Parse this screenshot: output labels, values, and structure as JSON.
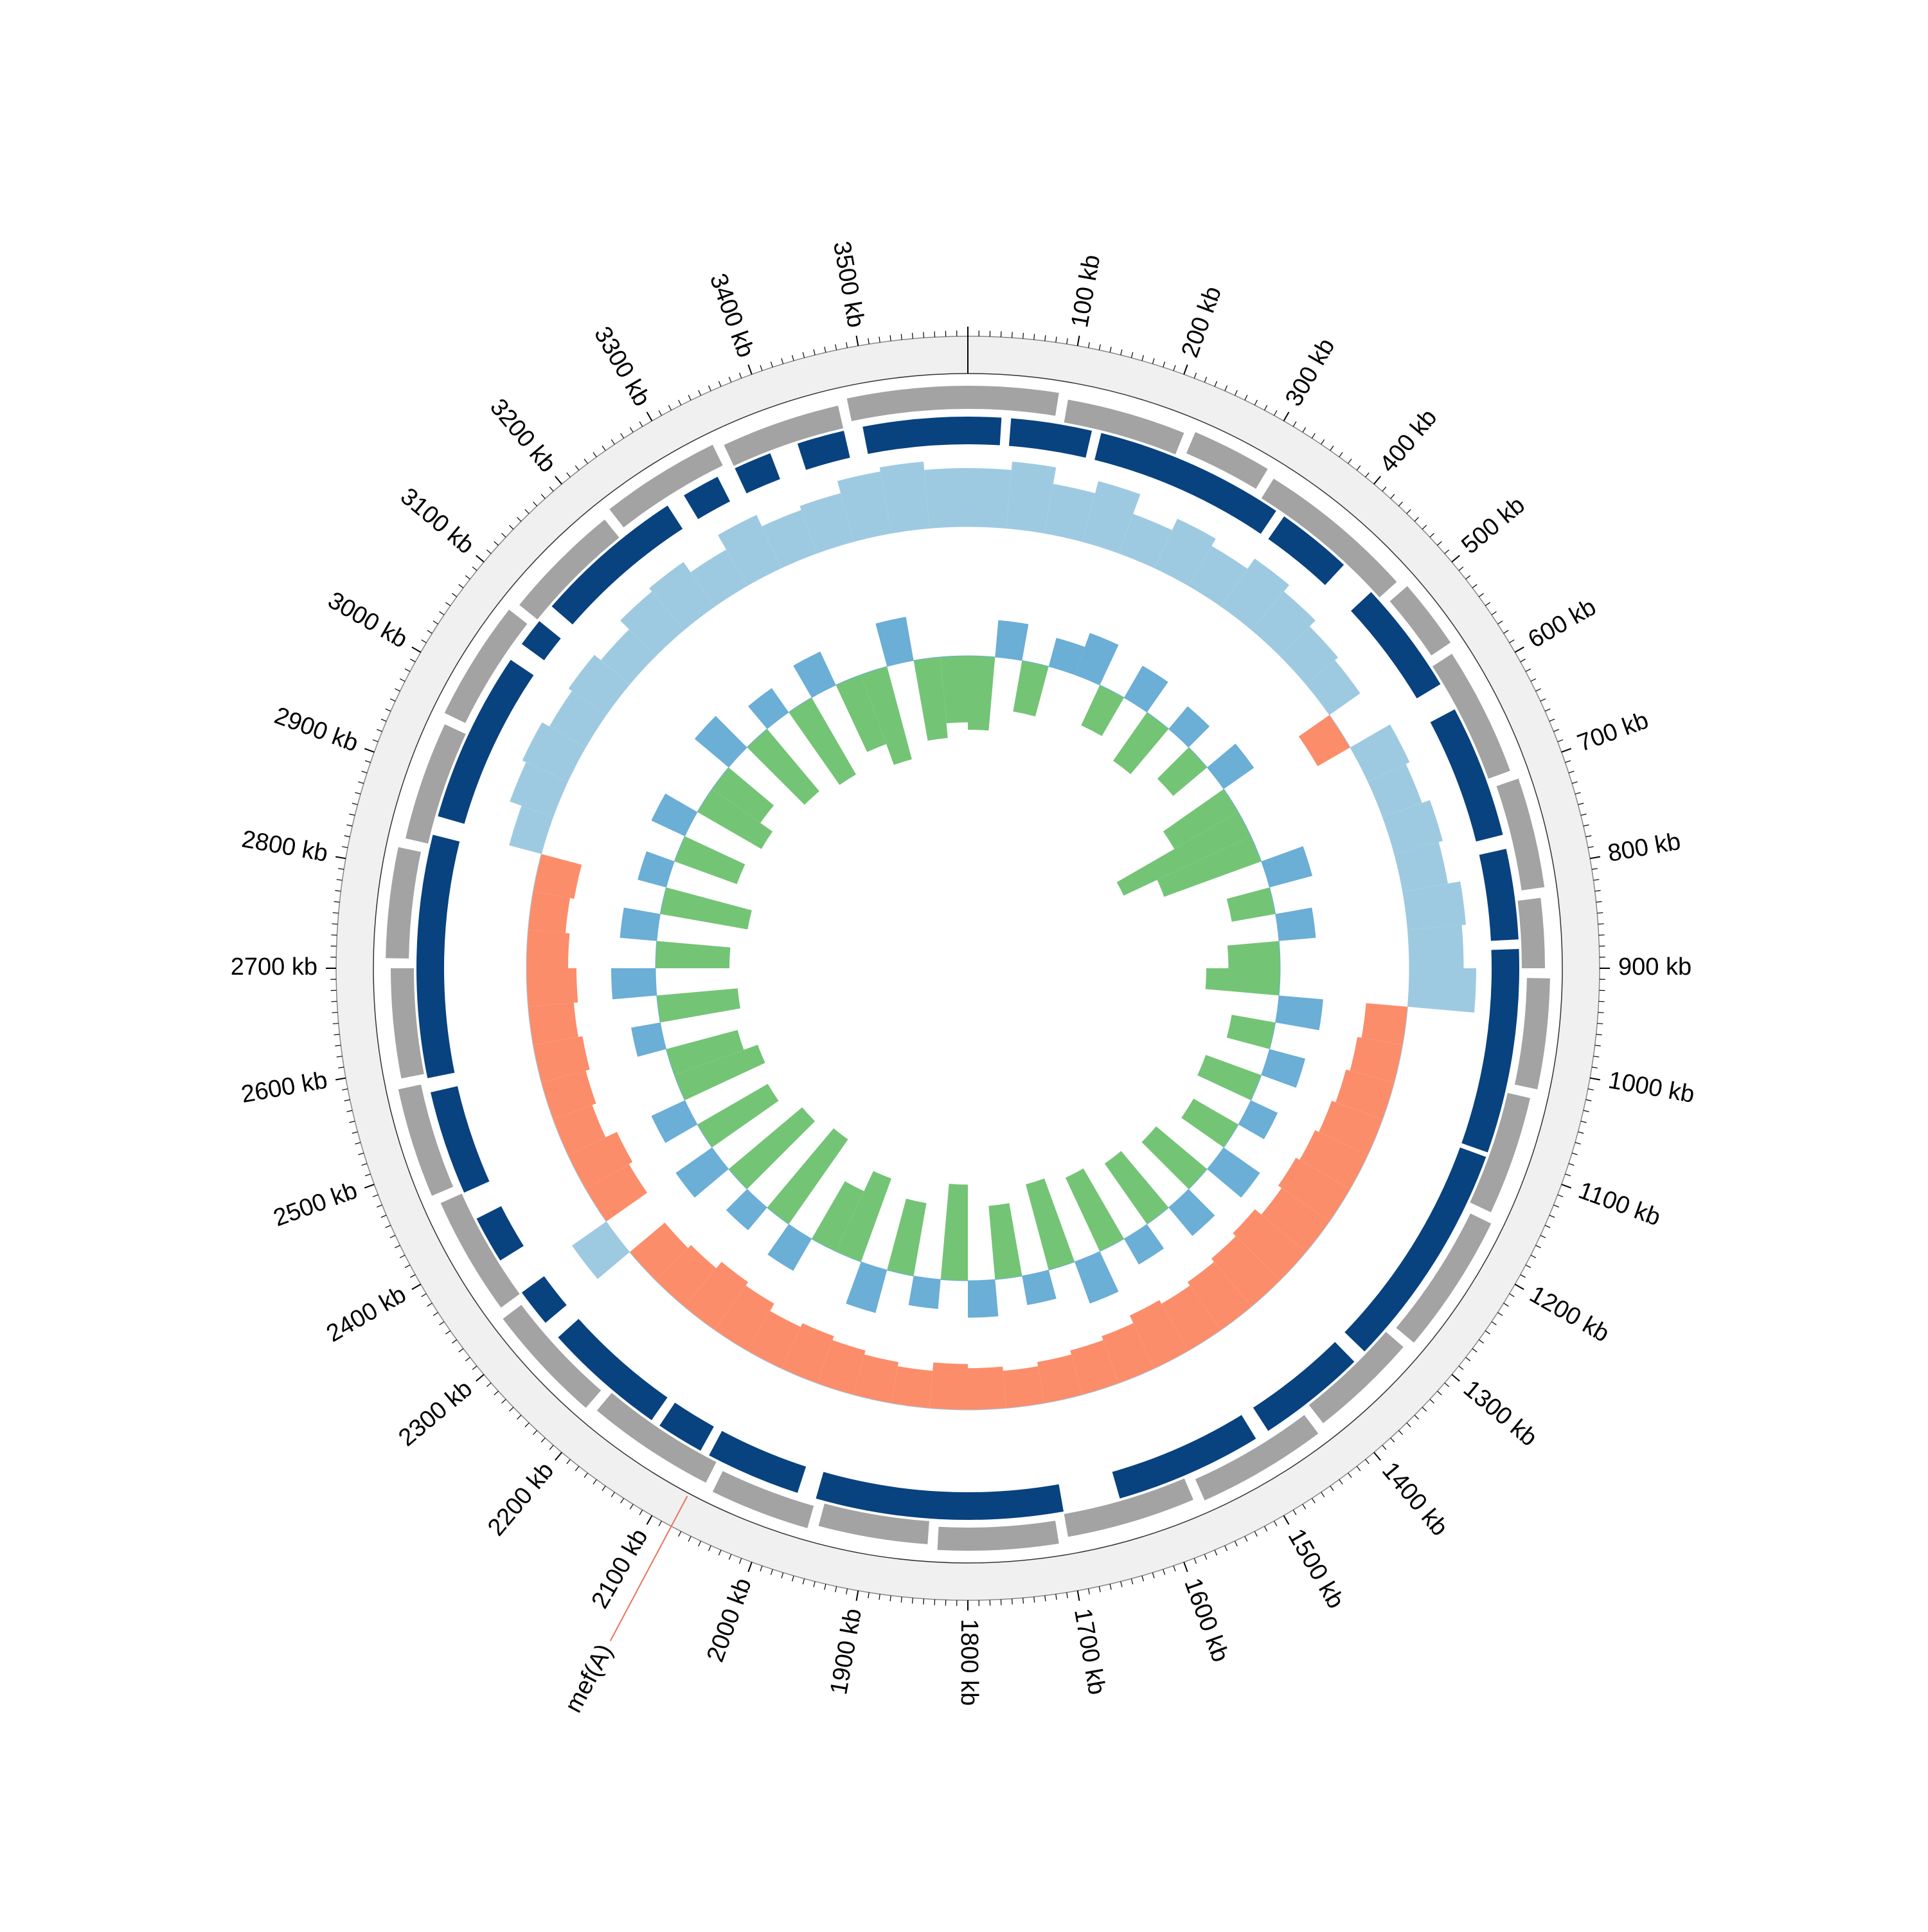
{
  "chart_data": {
    "type": "circular",
    "xlim": [
      0,
      3600
    ],
    "xticks": [
      {
        "value": 100,
        "label": "100 kb"
      },
      {
        "value": 200,
        "label": "200 kb"
      },
      {
        "value": 300,
        "label": "300 kb"
      },
      {
        "value": 400,
        "label": "400 kb"
      },
      {
        "value": 500,
        "label": "500 kb"
      },
      {
        "value": 600,
        "label": "600 kb"
      },
      {
        "value": 700,
        "label": "700 kb"
      },
      {
        "value": 800,
        "label": "800 kb"
      },
      {
        "value": 900,
        "label": "900 kb"
      },
      {
        "value": 1000,
        "label": "1000 kb"
      },
      {
        "value": 1100,
        "label": "1100 kb"
      },
      {
        "value": 1200,
        "label": "1200 kb"
      },
      {
        "value": 1300,
        "label": "1300 kb"
      },
      {
        "value": 1400,
        "label": "1400 kb"
      },
      {
        "value": 1500,
        "label": "1500 kb"
      },
      {
        "value": 1600,
        "label": "1600 kb"
      },
      {
        "value": 1700,
        "label": "1700 kb"
      },
      {
        "value": 1800,
        "label": "1800 kb"
      },
      {
        "value": 1900,
        "label": "1900 kb"
      },
      {
        "value": 2000,
        "label": "2000 kb"
      },
      {
        "value": 2100,
        "label": "2100 kb"
      },
      {
        "value": 2200,
        "label": "2200 kb"
      },
      {
        "value": 2300,
        "label": "2300 kb"
      },
      {
        "value": 2400,
        "label": "2400 kb"
      },
      {
        "value": 2500,
        "label": "2500 kb"
      },
      {
        "value": 2600,
        "label": "2600 kb"
      },
      {
        "value": 2700,
        "label": "2700 kb"
      },
      {
        "value": 2800,
        "label": "2800 kb"
      },
      {
        "value": 2900,
        "label": "2900 kb"
      },
      {
        "value": 3000,
        "label": "3000 kb"
      },
      {
        "value": 3100,
        "label": "3100 kb"
      },
      {
        "value": 3200,
        "label": "3200 kb"
      },
      {
        "value": 3300,
        "label": "3300 kb"
      },
      {
        "value": 3400,
        "label": "3400 kb"
      },
      {
        "value": 3500,
        "label": "3500 kb"
      }
    ],
    "minor_tick_step": 10,
    "annotations": [
      {
        "text": "mef(A)",
        "position": 2080,
        "color": "#2f6fb5",
        "line_color": "#e8735a"
      }
    ],
    "bins": [
      0,
      50,
      100,
      150,
      200,
      250,
      300,
      350,
      400,
      450,
      500,
      550,
      600,
      650,
      700,
      750,
      800,
      850,
      900,
      950,
      1000,
      1050,
      1100,
      1150,
      1200,
      1250,
      1300,
      1350,
      1400,
      1450,
      1500,
      1550,
      1600,
      1650,
      1700,
      1750,
      1800,
      1850,
      1900,
      1950,
      2000,
      2050,
      2100,
      2150,
      2200,
      2250,
      2300,
      2350,
      2400,
      2450,
      2500,
      2550,
      2600,
      2650,
      2700,
      2750,
      2800,
      2850,
      2900,
      2950,
      3000,
      3050,
      3100,
      3150,
      3200,
      3250,
      3300,
      3350,
      3400,
      3450,
      3500,
      3550,
      3600
    ],
    "tracks": [
      {
        "type": "features",
        "color": "#a3a3a3",
        "regions": [
          [
            0,
            90
          ],
          [
            100,
            220
          ],
          [
            230,
            310
          ],
          [
            320,
            480
          ],
          [
            490,
            560
          ],
          [
            570,
            700
          ],
          [
            710,
            820
          ],
          [
            830,
            900
          ],
          [
            910,
            1020
          ],
          [
            1030,
            1150
          ],
          [
            1160,
            1300
          ],
          [
            1310,
            1420
          ],
          [
            1430,
            1560
          ],
          [
            1570,
            1700
          ],
          [
            1710,
            1830
          ],
          [
            1840,
            1950
          ],
          [
            1960,
            2060
          ],
          [
            2070,
            2200
          ],
          [
            2210,
            2330
          ],
          [
            2340,
            2460
          ],
          [
            2470,
            2580
          ],
          [
            2590,
            2700
          ],
          [
            2710,
            2820
          ],
          [
            2830,
            2950
          ],
          [
            2960,
            3080
          ],
          [
            3090,
            3210
          ],
          [
            3220,
            3340
          ],
          [
            3350,
            3470
          ],
          [
            3480,
            3600
          ]
        ]
      },
      {
        "type": "features",
        "color": "#08427f",
        "regions": [
          [
            0,
            35
          ],
          [
            45,
            130
          ],
          [
            140,
            340
          ],
          [
            350,
            430
          ],
          [
            470,
            590
          ],
          [
            620,
            760
          ],
          [
            775,
            870
          ],
          [
            880,
            1095
          ],
          [
            1100,
            1340
          ],
          [
            1355,
            1470
          ],
          [
            1485,
            1640
          ],
          [
            1700,
            1960
          ],
          [
            1980,
            2080
          ],
          [
            2090,
            2140
          ],
          [
            2150,
            2280
          ],
          [
            2300,
            2340
          ],
          [
            2380,
            2430
          ],
          [
            2460,
            2570
          ],
          [
            2585,
            2840
          ],
          [
            2860,
            3040
          ],
          [
            3060,
            3090
          ],
          [
            3110,
            3270
          ],
          [
            3290,
            3330
          ],
          [
            3350,
            3390
          ],
          [
            3420,
            3470
          ],
          [
            3490,
            3600
          ]
        ]
      },
      {
        "type": "bars",
        "ylim": [
          -1,
          1
        ],
        "positive_color": "#9ecae1",
        "negative_color": "#fc8d6a",
        "values": [
          0.7,
          0.8,
          0.6,
          0.75,
          0.5,
          0.65,
          0.55,
          0.7,
          0.6,
          0.5,
          0.45,
          -0.45,
          0.55,
          0.5,
          0.6,
          0.55,
          0.7,
          0.65,
          0.8,
          -0.5,
          -0.55,
          -0.6,
          -0.65,
          -0.7,
          -0.75,
          -0.7,
          -0.8,
          -0.75,
          -0.7,
          -0.65,
          -0.7,
          -0.6,
          -0.55,
          -0.5,
          -0.45,
          -0.5,
          -0.55,
          -0.45,
          -0.5,
          -0.55,
          -0.6,
          -0.55,
          -0.65,
          -0.7,
          -0.6,
          -0.55,
          0.5,
          -0.6,
          -0.65,
          -0.5,
          -0.55,
          -0.6,
          -0.55,
          -0.6,
          -0.5,
          -0.45,
          -0.5,
          0.4,
          0.55,
          0.6,
          0.5,
          0.55,
          0.45,
          0.6,
          0.65,
          0.5,
          0.7,
          0.55,
          0.6,
          0.75,
          0.8,
          0.7
        ]
      },
      {
        "type": "bars",
        "ylim": [
          -1,
          1
        ],
        "positive_color": "#6baed6",
        "negative_color": "#74c476",
        "values": [
          -0.5,
          0.25,
          -0.35,
          0.2,
          0.3,
          -0.3,
          0.25,
          -0.4,
          0.2,
          -0.3,
          0.25,
          -0.5,
          -0.95,
          -0.7,
          0.3,
          -0.3,
          0.25,
          -0.35,
          -0.5,
          0.3,
          -0.3,
          0.25,
          -0.4,
          0.2,
          -0.35,
          0.3,
          -0.45,
          0.25,
          -0.5,
          0.2,
          -0.55,
          0.3,
          -0.6,
          0.2,
          -0.5,
          0.25,
          -0.65,
          0.2,
          -0.5,
          0.3,
          -0.6,
          -0.45,
          0.25,
          -0.7,
          0.2,
          -0.65,
          0.3,
          -0.55,
          0.25,
          -0.6,
          -0.5,
          0.2,
          -0.55,
          0.3,
          -0.5,
          0.25,
          -0.6,
          0.2,
          -0.45,
          0.25,
          -0.5,
          -0.4,
          0.3,
          -0.55,
          0.2,
          -0.6,
          0.25,
          -0.5,
          -0.65,
          0.3,
          -0.55,
          -0.45
        ]
      }
    ]
  }
}
